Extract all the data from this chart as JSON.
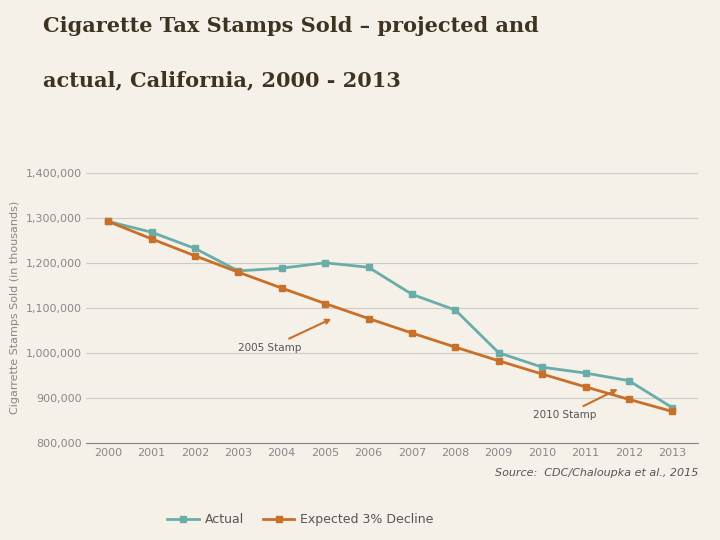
{
  "title_line1": "Cigarette Tax Stamps Sold – projected and",
  "title_line2": "actual, California, 2000 - 2013",
  "ylabel": "Cigarrette Stamps Sold (in thousands)",
  "years": [
    2000,
    2001,
    2002,
    2003,
    2004,
    2005,
    2006,
    2007,
    2008,
    2009,
    2010,
    2011,
    2012,
    2013
  ],
  "actual": [
    1292000,
    1268000,
    1232000,
    1182000,
    1188000,
    1200000,
    1190000,
    1130000,
    1095000,
    1000000,
    968000,
    955000,
    938000,
    878000
  ],
  "expected": [
    1292000,
    1253240,
    1215643,
    1179174,
    1143799,
    1109485,
    1076200,
    1043914,
    1012597,
    982219,
    952752,
    924170,
    896485,
    869590
  ],
  "actual_color": "#6aada8",
  "expected_color": "#c8702a",
  "bg_color": "#f5f0e8",
  "title_color": "#3d3320",
  "axis_color": "#888888",
  "grid_color": "#cccccc",
  "ylim": [
    800000,
    1400000
  ],
  "yticks": [
    800000,
    900000,
    1000000,
    1100000,
    1200000,
    1300000,
    1400000
  ],
  "annotation_2005_text": "2005 Stamp",
  "annotation_2010_text": "2010 Stamp",
  "source_text": "Source:  CDC/Chaloupka et al., 2015",
  "legend_actual": "Actual",
  "legend_expected": "Expected 3% Decline"
}
